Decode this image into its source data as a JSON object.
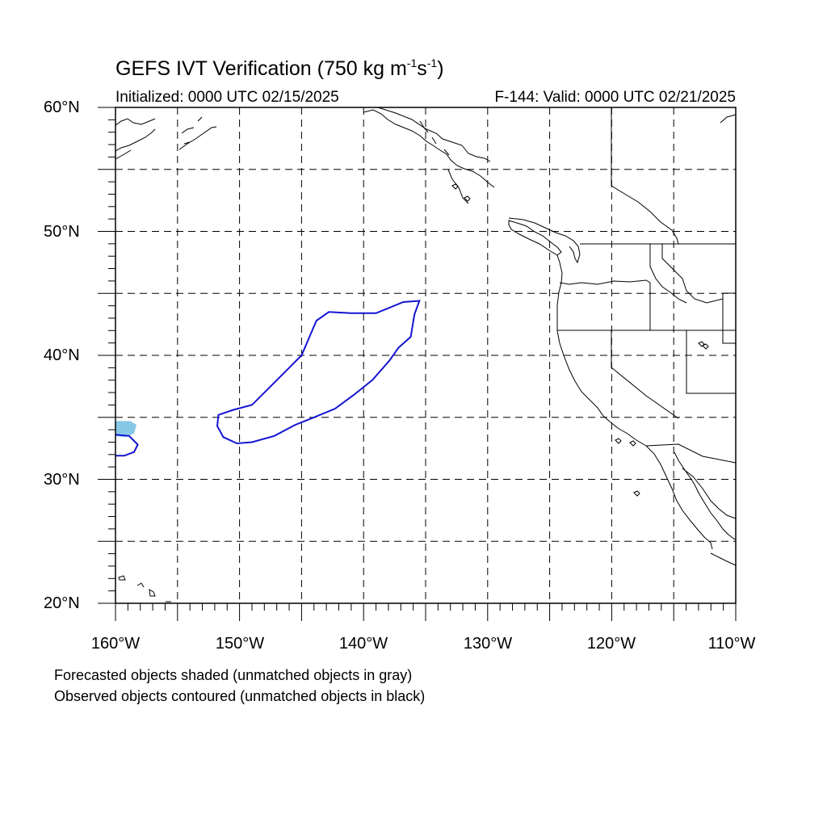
{
  "title": {
    "main": "GEFS IVT Verification (750 kg m",
    "exp1": "-1",
    "mid": "s",
    "exp2": "-1",
    "end": ")"
  },
  "subtitle_left": "Initialized: 0000 UTC 02/15/2025",
  "subtitle_right": "F-144: Valid: 0000 UTC 02/21/2025",
  "lat_labels": [
    "60°N",
    "50°N",
    "40°N",
    "30°N",
    "20°N"
  ],
  "lon_labels": [
    "160°W",
    "150°W",
    "140°W",
    "130°W",
    "120°W",
    "110°W"
  ],
  "notes": [
    "Forecasted objects shaded (unmatched objects in gray)",
    "Observed objects contoured (unmatched objects in black)"
  ],
  "map_extent": {
    "lon": [
      -160,
      -110
    ],
    "lat": [
      20,
      60
    ]
  },
  "colors": {
    "observed_contour": "#1414d2",
    "forecast_shade": "#87c8e6",
    "grid": "#000000"
  },
  "objects": {
    "observed_main": [
      [
        -135.5,
        44.4
      ],
      [
        -136.8,
        44.3
      ],
      [
        -139.0,
        43.4
      ],
      [
        -141.0,
        43.4
      ],
      [
        -142.8,
        43.5
      ],
      [
        -143.8,
        42.8
      ],
      [
        -145.0,
        40.0
      ],
      [
        -146.0,
        39.0
      ],
      [
        -147.5,
        37.5
      ],
      [
        -149.0,
        36.0
      ],
      [
        -150.5,
        35.6
      ],
      [
        -151.7,
        35.2
      ],
      [
        -151.8,
        34.3
      ],
      [
        -151.3,
        33.4
      ],
      [
        -150.2,
        32.9
      ],
      [
        -149.0,
        33.0
      ],
      [
        -147.2,
        33.5
      ],
      [
        -145.5,
        34.4
      ],
      [
        -144.0,
        35.0
      ],
      [
        -142.3,
        35.7
      ],
      [
        -140.8,
        36.8
      ],
      [
        -139.3,
        38.0
      ],
      [
        -137.9,
        39.6
      ],
      [
        -137.2,
        40.6
      ],
      [
        -136.2,
        41.5
      ],
      [
        -135.9,
        43.3
      ],
      [
        -135.5,
        44.4
      ]
    ],
    "observed_west": [
      [
        -160,
        33.6
      ],
      [
        -158.9,
        33.5
      ],
      [
        -158.2,
        32.8
      ],
      [
        -158.5,
        32.2
      ],
      [
        -159.3,
        31.9
      ],
      [
        -160,
        31.9
      ]
    ],
    "forecast_west": [
      [
        -160,
        34.7
      ],
      [
        -158.8,
        34.7
      ],
      [
        -158.3,
        34.4
      ],
      [
        -158.5,
        33.7
      ],
      [
        -159.2,
        33.4
      ],
      [
        -160,
        33.5
      ]
    ]
  }
}
